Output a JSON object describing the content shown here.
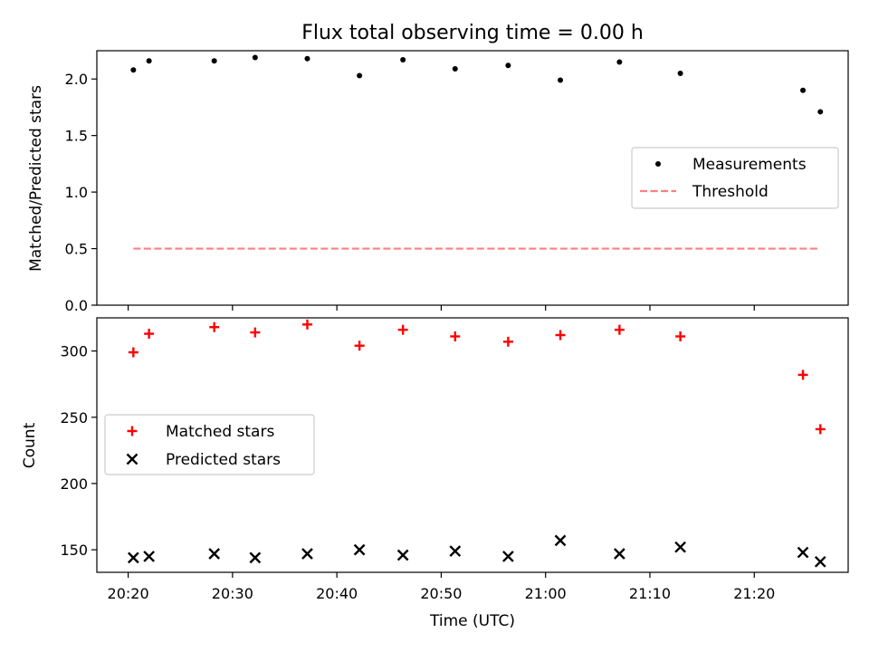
{
  "figure_title": "Flux total observing time = 0.00 h",
  "x_tick_labels": [
    "20:20",
    "20:30",
    "20:40",
    "20:50",
    "21:00",
    "21:10",
    "21:20"
  ],
  "xlabel": "Time (UTC)",
  "colors": {
    "threshold": "#ff7f7f",
    "matched": "#ff0000",
    "predicted": "#000000",
    "measurement": "#000000"
  },
  "chart_data": [
    {
      "type": "scatter",
      "panel": "top",
      "title": "Flux total observing time = 0.00 h",
      "xlabel": "",
      "ylabel": "Matched/Predicted stars",
      "x_unit": "minutes after 20:00 UTC",
      "xlim": [
        "20:17",
        "21:29"
      ],
      "ylim": [
        0,
        2.25
      ],
      "yticks": [
        0.0,
        0.5,
        1.0,
        1.5,
        2.0
      ],
      "ytick_labels": [
        "0.0",
        "0.5",
        "1.0",
        "1.5",
        "2.0"
      ],
      "legend_position": "center-right",
      "series": [
        {
          "name": "Measurements",
          "marker": "dot",
          "x": [
            "20:20:30",
            "20:22:00",
            "20:28:15",
            "20:32:10",
            "20:37:10",
            "20:42:10",
            "20:46:20",
            "20:51:20",
            "20:56:25",
            "21:01:25",
            "21:07:05",
            "21:12:55",
            "21:24:40",
            "21:26:20"
          ],
          "y": [
            2.08,
            2.16,
            2.16,
            2.19,
            2.18,
            2.03,
            2.17,
            2.09,
            2.12,
            1.99,
            2.15,
            2.05,
            1.9,
            1.71
          ]
        },
        {
          "name": "Threshold",
          "marker": "dashed-line",
          "x": [
            "20:20:30",
            "21:26:20"
          ],
          "y": [
            0.5,
            0.5
          ]
        }
      ]
    },
    {
      "type": "scatter",
      "panel": "bottom",
      "xlabel": "Time (UTC)",
      "ylabel": "Count",
      "xlim": [
        "20:17",
        "21:29"
      ],
      "ylim": [
        133,
        325
      ],
      "yticks": [
        150,
        200,
        250,
        300
      ],
      "ytick_labels": [
        "150",
        "200",
        "250",
        "300"
      ],
      "legend_position": "center-left",
      "series": [
        {
          "name": "Matched stars",
          "marker": "plus",
          "x": [
            "20:20:30",
            "20:22:00",
            "20:28:15",
            "20:32:10",
            "20:37:10",
            "20:42:10",
            "20:46:20",
            "20:51:20",
            "20:56:25",
            "21:01:25",
            "21:07:05",
            "21:12:55",
            "21:24:40",
            "21:26:20"
          ],
          "y": [
            299,
            313,
            318,
            314,
            320,
            304,
            316,
            311,
            307,
            312,
            316,
            311,
            282,
            241
          ]
        },
        {
          "name": "Predicted stars",
          "marker": "x",
          "x": [
            "20:20:30",
            "20:22:00",
            "20:28:15",
            "20:32:10",
            "20:37:10",
            "20:42:10",
            "20:46:20",
            "20:51:20",
            "20:56:25",
            "21:01:25",
            "21:07:05",
            "21:12:55",
            "21:24:40",
            "21:26:20"
          ],
          "y": [
            144,
            145,
            147,
            144,
            147,
            150,
            146,
            149,
            145,
            157,
            147,
            152,
            148,
            141
          ]
        }
      ]
    }
  ]
}
